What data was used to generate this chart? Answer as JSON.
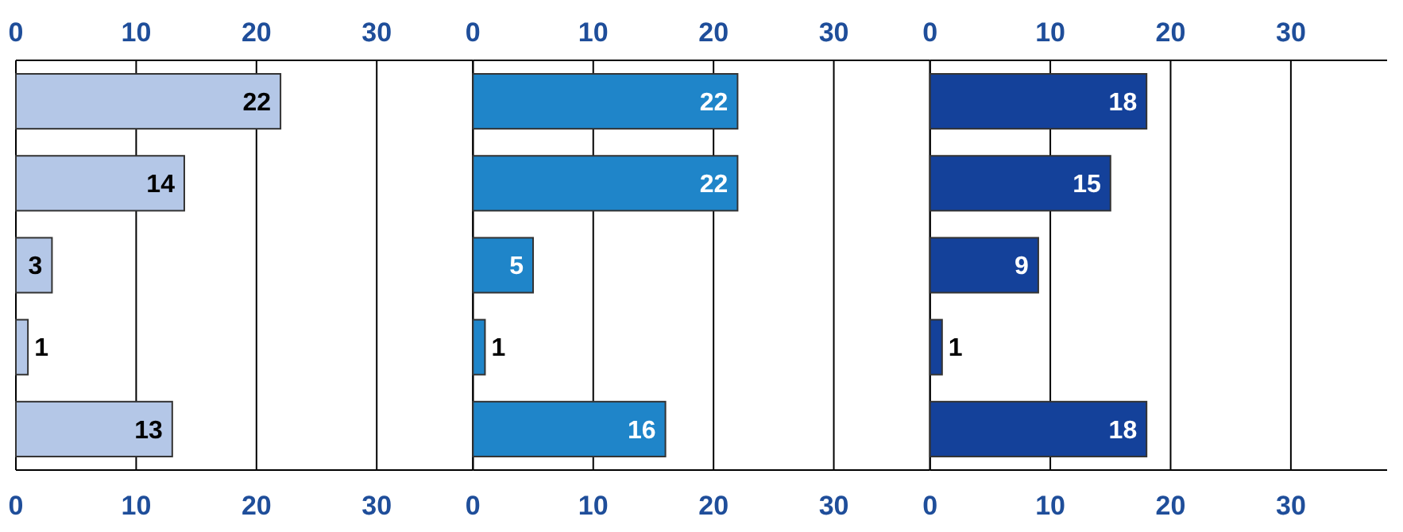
{
  "chart_data": [
    {
      "type": "bar",
      "orientation": "horizontal",
      "categories": [
        null,
        null,
        null,
        null,
        null
      ],
      "values": [
        22,
        14,
        3,
        1,
        13
      ],
      "color": "#b4c7e7",
      "xlim": [
        0,
        38
      ],
      "xticks": [
        0,
        10,
        20,
        30
      ],
      "x2lim": [
        0,
        38
      ],
      "x2ticks": [
        0,
        10,
        20,
        30
      ],
      "grid": "x",
      "data_labels": true,
      "tick_labels": "x"
    },
    {
      "type": "bar",
      "orientation": "horizontal",
      "categories": [
        null,
        null,
        null,
        null,
        null
      ],
      "values": [
        22,
        22,
        5,
        1,
        16
      ],
      "color": "#1f85c9",
      "xlim": [
        0,
        38
      ],
      "xticks": [
        0,
        10,
        20,
        30
      ],
      "x2lim": [
        0,
        38
      ],
      "x2ticks": [
        0,
        10,
        20,
        30
      ],
      "grid": "x",
      "data_labels": true,
      "tick_labels": "x"
    },
    {
      "type": "bar",
      "orientation": "horizontal",
      "categories": [
        null,
        null,
        null,
        null,
        null
      ],
      "values": [
        18,
        15,
        9,
        1,
        18
      ],
      "color": "#14419a",
      "xlim": [
        0,
        38
      ],
      "xticks": [
        0,
        10,
        20,
        30
      ],
      "x2lim": [
        0,
        38
      ],
      "x2ticks": [
        0,
        10,
        20,
        30
      ],
      "grid": "x",
      "data_labels": true,
      "tick_labels": "x"
    }
  ]
}
